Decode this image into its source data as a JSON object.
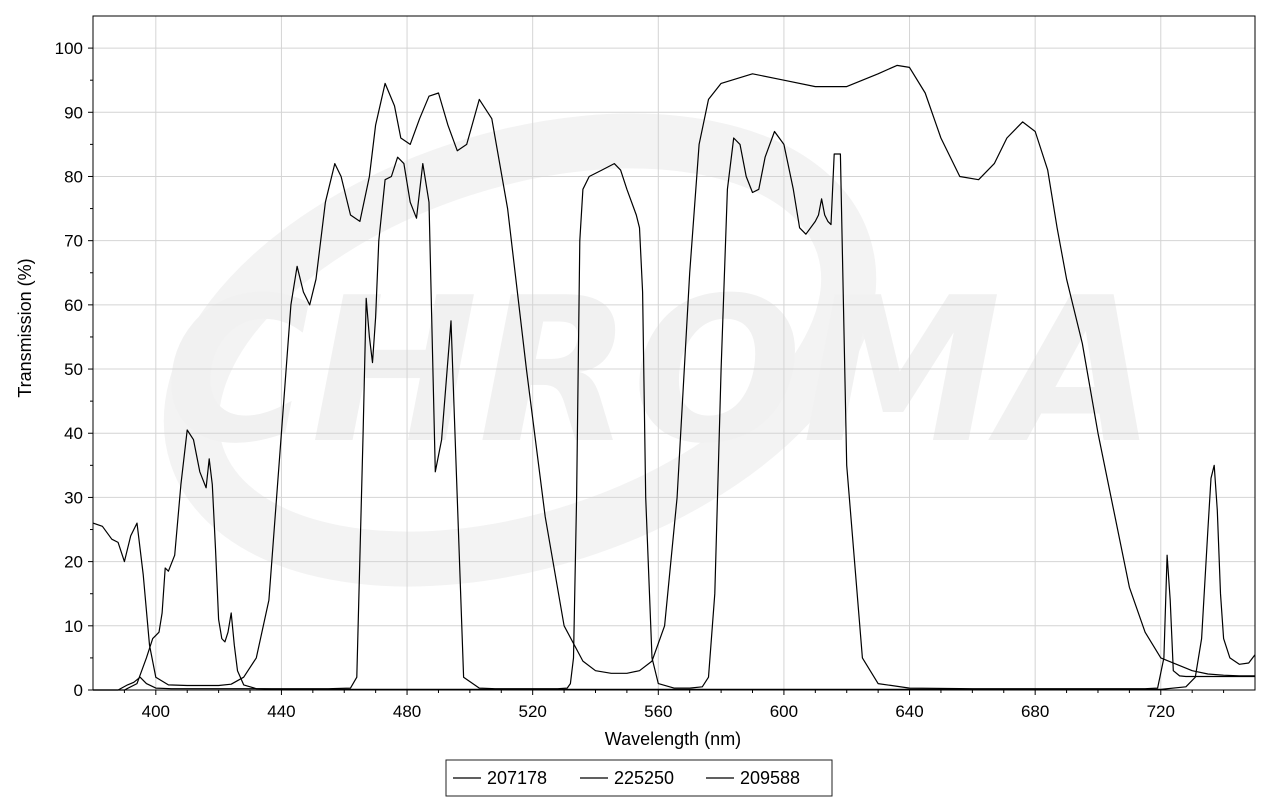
{
  "chart_data": {
    "type": "line",
    "title": "",
    "xlabel": "Wavelength (nm)",
    "ylabel": "Transmission (%)",
    "xlim": [
      380,
      750
    ],
    "ylim": [
      0,
      105
    ],
    "x_ticks": [
      400,
      440,
      480,
      520,
      560,
      600,
      640,
      680,
      720
    ],
    "y_ticks": [
      0,
      10,
      20,
      30,
      40,
      50,
      60,
      70,
      80,
      90,
      100
    ],
    "grid": true,
    "legend_position": "bottom-center",
    "line_color": "#000000",
    "watermark": "CHROMA",
    "series": [
      {
        "name": "207178",
        "x": [
          380,
          383,
          386,
          388,
          390,
          392,
          394,
          396,
          398,
          400,
          404,
          410,
          416,
          420,
          424,
          428,
          432,
          436,
          440,
          443,
          445,
          447,
          449,
          451,
          454,
          457,
          459,
          462,
          465,
          468,
          470,
          473,
          476,
          478,
          481,
          484,
          487,
          490,
          493,
          496,
          499,
          503,
          507,
          512,
          518,
          524,
          530,
          536,
          540,
          545,
          550,
          554,
          558,
          562,
          566,
          570,
          573,
          576,
          580,
          590,
          600,
          610,
          620,
          630,
          636,
          640,
          645,
          650,
          656,
          662,
          667,
          671,
          676,
          680,
          684,
          687,
          690,
          695,
          700,
          705,
          710,
          715,
          720,
          725,
          730,
          735,
          740,
          745,
          750
        ],
        "y": [
          26,
          25.5,
          23.5,
          23,
          20,
          24,
          26,
          18,
          7,
          2,
          0.8,
          0.7,
          0.7,
          0.7,
          0.9,
          2,
          5,
          14,
          40,
          60,
          66,
          62,
          60,
          64,
          76,
          82,
          80,
          74,
          73,
          80,
          88,
          94.5,
          91,
          86,
          85,
          89,
          92.5,
          93,
          88,
          84,
          85,
          92,
          89,
          75,
          50,
          27,
          10,
          4.5,
          3,
          2.6,
          2.6,
          3,
          4.5,
          10,
          30,
          65,
          85,
          92,
          94.5,
          96,
          95,
          94,
          94,
          96,
          97.3,
          97,
          93,
          86,
          80,
          79.5,
          82,
          86,
          88.5,
          87,
          81,
          72,
          64,
          54,
          40,
          28,
          16,
          9,
          5,
          4,
          3,
          2.5,
          2.3,
          2.2,
          2.2
        ]
      },
      {
        "name": "225250",
        "x": [
          380,
          388,
          391,
          393,
          395,
          397,
          400,
          405,
          410,
          415,
          420,
          425,
          430,
          440,
          455,
          462,
          464,
          466,
          467,
          468,
          469,
          470,
          471,
          473,
          475,
          477,
          479,
          481,
          483,
          485,
          487,
          489,
          491,
          494,
          498,
          503,
          508,
          513,
          518,
          523,
          528,
          531,
          532,
          533,
          534,
          535,
          536,
          538,
          542,
          546,
          548,
          550,
          553,
          554,
          555,
          556,
          558,
          560,
          565,
          570,
          574,
          576,
          578,
          580,
          582,
          584,
          586,
          588,
          590,
          592,
          594,
          597,
          600,
          603,
          605,
          607,
          610,
          611,
          612,
          613,
          614,
          615,
          616,
          618,
          620,
          625,
          630,
          640,
          660,
          680,
          700,
          715,
          719,
          721,
          722,
          723,
          724,
          726,
          728,
          730,
          735,
          740,
          745,
          750
        ],
        "y": [
          0,
          0,
          0.8,
          1.2,
          2,
          1,
          0.3,
          0.2,
          0.2,
          0.2,
          0.2,
          0.2,
          0.2,
          0.2,
          0.2,
          0.3,
          2,
          40,
          61,
          55,
          51,
          58,
          70,
          79.5,
          80,
          83,
          82,
          76,
          73.5,
          82,
          76,
          34,
          39,
          57.5,
          2,
          0.3,
          0.2,
          0.2,
          0.2,
          0.2,
          0.2,
          0.3,
          1,
          5,
          30,
          70,
          78,
          80,
          81,
          82,
          81,
          78,
          74,
          72,
          62,
          30,
          5,
          1,
          0.3,
          0.3,
          0.5,
          2,
          15,
          50,
          78,
          86,
          85,
          80,
          77.5,
          78,
          83,
          87,
          85,
          78,
          72,
          71,
          73,
          74,
          76.5,
          74,
          73,
          72.5,
          83.5,
          83.5,
          35,
          5,
          1,
          0.3,
          0.2,
          0.2,
          0.2,
          0.2,
          0.3,
          5,
          21,
          14,
          3,
          2.2,
          2.1,
          2.1,
          2.1,
          2.1,
          2.1,
          2.1
        ]
      },
      {
        "name": "209588",
        "x": [
          380,
          390,
          394,
          397,
          399,
          401,
          402,
          403,
          404,
          406,
          408,
          410,
          412,
          414,
          416,
          417,
          418,
          419,
          420,
          421,
          422,
          423,
          424,
          425,
          426,
          428,
          432,
          440,
          460,
          480,
          500,
          520,
          540,
          560,
          580,
          600,
          620,
          640,
          660,
          680,
          700,
          720,
          728,
          731,
          733,
          735,
          736,
          737,
          738,
          739,
          740,
          742,
          745,
          748,
          750
        ],
        "y": [
          0,
          0,
          1,
          5,
          8,
          9,
          12,
          19,
          18.5,
          21,
          32,
          40.5,
          39,
          34,
          31.5,
          36,
          32,
          22,
          11,
          8,
          7.5,
          9,
          12,
          7,
          3,
          0.8,
          0.2,
          0.1,
          0.1,
          0.1,
          0.1,
          0.1,
          0.1,
          0.1,
          0.1,
          0.1,
          0.1,
          0.1,
          0.1,
          0.1,
          0.1,
          0.1,
          0.5,
          2,
          8,
          25,
          33,
          35,
          28,
          15,
          8,
          5,
          4,
          4.2,
          5.5
        ]
      }
    ]
  }
}
